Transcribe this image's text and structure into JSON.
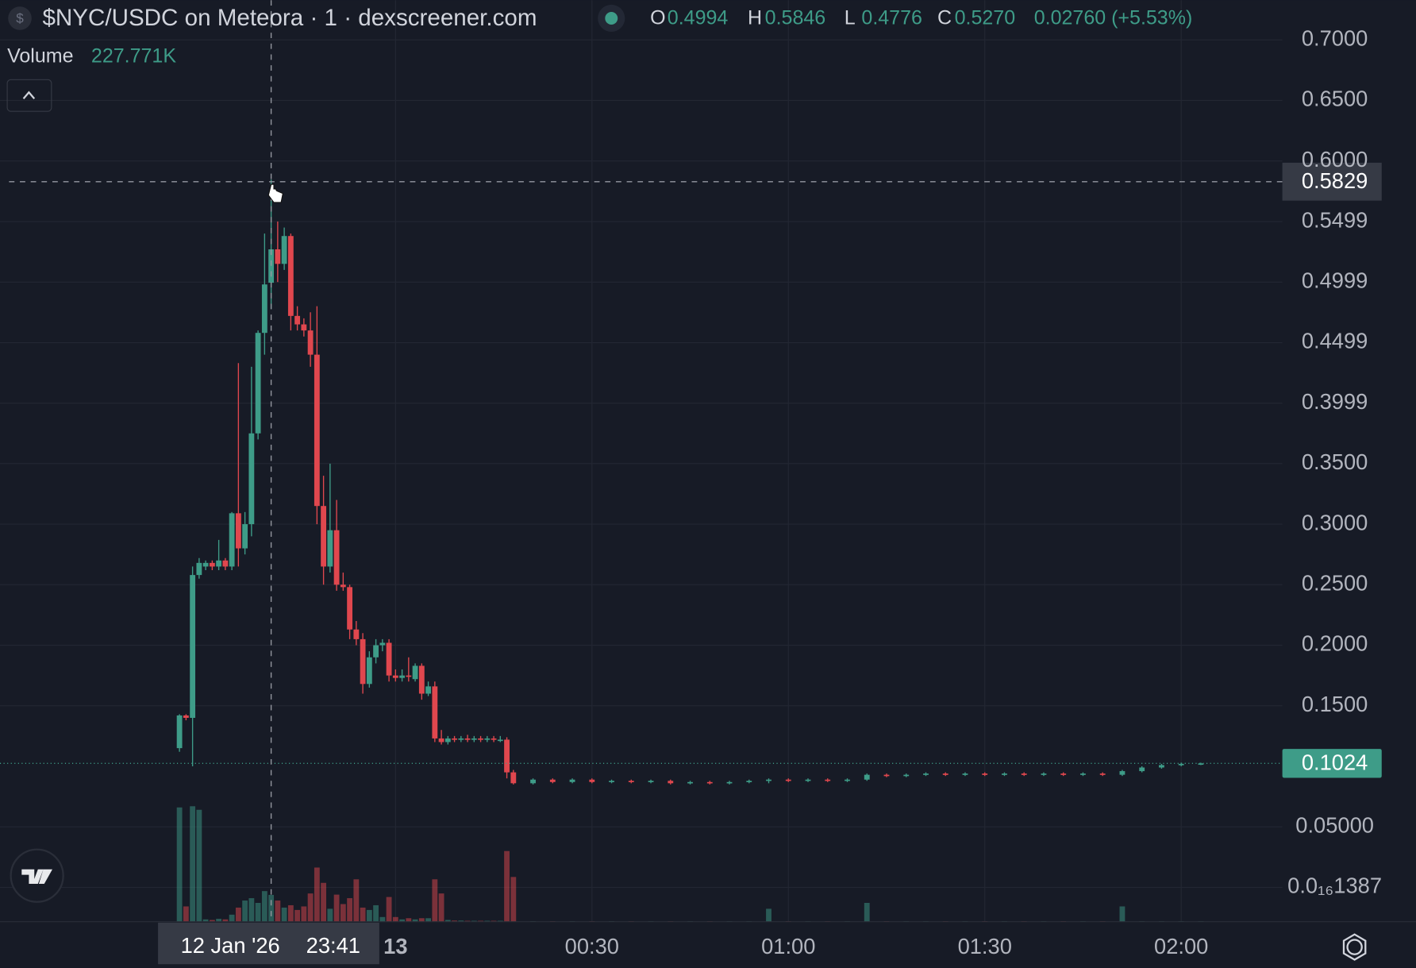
{
  "chart_data": {
    "type": "candlestick",
    "title": "$NYC/USDC on Meteora · 1 · dexscreener.com",
    "ohlc": [
      {
        "label": "O",
        "value": "0.4994"
      },
      {
        "label": "H",
        "value": "0.5846"
      },
      {
        "label": "L",
        "value": "0.4776"
      },
      {
        "label": "C",
        "value": "0.5270"
      }
    ],
    "change": "0.02760 (+5.53%)",
    "volume_title": "Volume",
    "volume_value": "227.771K",
    "crosshair_date": "12 Jan '26",
    "crosshair_index": 14,
    "crosshair_price": 0.5829,
    "last_price": 0.1024,
    "up_color": "#3e9c88",
    "down_color": "#e0474e",
    "grid": true,
    "ylim": [
      -0.0284,
      0.7328
    ],
    "yticks": [
      {
        "value": 0.7,
        "label": "0.7000"
      },
      {
        "value": 0.65,
        "label": "0.6500"
      },
      {
        "value": 0.6,
        "label": "0.6000"
      },
      0.5499,
      0.4999,
      0.4499,
      0.3999,
      {
        "value": 0.35,
        "label": "0.3500"
      },
      {
        "value": 0.3,
        "label": "0.3000"
      },
      {
        "value": 0.25,
        "label": "0.2500"
      },
      {
        "value": 0.2,
        "label": "0.2000"
      },
      {
        "value": 0.15,
        "label": "0.1500"
      },
      {
        "value": 0.05,
        "label": "0.05000"
      },
      {
        "value": 1.387e-17,
        "label": "0.0₁₆1387"
      }
    ],
    "xticks": [
      {
        "value": "00:00",
        "label": "13"
      },
      "00:30",
      "01:00",
      "01:30",
      "02:00"
    ],
    "vlim": [
      0,
      2300000
    ],
    "x": [
      "23:27",
      "23:28",
      "23:29",
      "23:30",
      "23:31",
      "23:32",
      "23:33",
      "23:34",
      "23:35",
      "23:36",
      "23:37",
      "23:38",
      "23:39",
      "23:40",
      "23:41",
      "23:42",
      "23:43",
      "23:44",
      "23:45",
      "23:46",
      "23:47",
      "23:48",
      "23:49",
      "23:50",
      "23:51",
      "23:52",
      "23:53",
      "23:54",
      "23:55",
      "23:56",
      "23:57",
      "23:58",
      "23:59",
      "00:00",
      "00:01",
      "00:02",
      "00:03",
      "00:04",
      "00:05",
      "00:06",
      "00:07",
      "00:08",
      "00:09",
      "00:10",
      "00:11",
      "00:12",
      "00:13",
      "00:14",
      "00:15",
      "00:16",
      "00:17",
      "00:18",
      "00:21",
      "00:24",
      "00:27",
      "00:30",
      "00:33",
      "00:36",
      "00:39",
      "00:42",
      "00:45",
      "00:48",
      "00:51",
      "00:54",
      "00:57",
      "01:00",
      "01:03",
      "01:06",
      "01:09",
      "01:12",
      "01:15",
      "01:18",
      "01:21",
      "01:24",
      "01:27",
      "01:30",
      "01:33",
      "01:36",
      "01:39",
      "01:42",
      "01:45",
      "01:48",
      "01:51",
      "01:54",
      "01:57",
      "02:00",
      "02:03"
    ],
    "open": [
      0.115,
      0.142,
      0.14,
      0.258,
      0.265,
      0.268,
      0.265,
      0.27,
      0.265,
      0.309,
      0.28,
      0.3,
      0.375,
      0.458,
      0.4994,
      0.527,
      0.515,
      0.538,
      0.472,
      0.465,
      0.46,
      0.44,
      0.315,
      0.265,
      0.295,
      0.25,
      0.248,
      0.213,
      0.205,
      0.168,
      0.19,
      0.2,
      0.202,
      0.175,
      0.173,
      0.175,
      0.172,
      0.183,
      0.16,
      0.166,
      0.123,
      0.12,
      0.123,
      0.122,
      0.123,
      0.122,
      0.123,
      0.122,
      0.123,
      0.122,
      0.122,
      0.095,
      0.086,
      0.089,
      0.087,
      0.089,
      0.087,
      0.088,
      0.087,
      0.088,
      0.086,
      0.087,
      0.086,
      0.087,
      0.088,
      0.089,
      0.088,
      0.089,
      0.088,
      0.089,
      0.093,
      0.092,
      0.093,
      0.094,
      0.093,
      0.094,
      0.093,
      0.094,
      0.093,
      0.094,
      0.093,
      0.094,
      0.093,
      0.096,
      0.099,
      0.101,
      0.102
    ],
    "high": [
      0.143,
      0.143,
      0.265,
      0.272,
      0.27,
      0.27,
      0.287,
      0.272,
      0.31,
      0.433,
      0.31,
      0.43,
      0.46,
      0.54,
      0.5846,
      0.55,
      0.545,
      0.54,
      0.48,
      0.47,
      0.475,
      0.48,
      0.34,
      0.35,
      0.32,
      0.26,
      0.25,
      0.22,
      0.21,
      0.195,
      0.205,
      0.205,
      0.205,
      0.18,
      0.18,
      0.19,
      0.185,
      0.185,
      0.17,
      0.17,
      0.13,
      0.125,
      0.125,
      0.125,
      0.126,
      0.125,
      0.125,
      0.125,
      0.125,
      0.125,
      0.124,
      0.097,
      0.09,
      0.09,
      0.09,
      0.09,
      0.089,
      0.089,
      0.089,
      0.089,
      0.088,
      0.088,
      0.088,
      0.089,
      0.09,
      0.09,
      0.09,
      0.09,
      0.09,
      0.094,
      0.094,
      0.094,
      0.095,
      0.095,
      0.095,
      0.095,
      0.095,
      0.095,
      0.095,
      0.095,
      0.095,
      0.095,
      0.097,
      0.1,
      0.102,
      0.103,
      0.103
    ],
    "low": [
      0.112,
      0.138,
      0.1,
      0.255,
      0.262,
      0.262,
      0.262,
      0.262,
      0.262,
      0.265,
      0.275,
      0.29,
      0.37,
      0.44,
      0.4776,
      0.5,
      0.51,
      0.46,
      0.46,
      0.455,
      0.43,
      0.3,
      0.25,
      0.26,
      0.245,
      0.245,
      0.205,
      0.2,
      0.16,
      0.165,
      0.185,
      0.195,
      0.17,
      0.17,
      0.17,
      0.17,
      0.17,
      0.155,
      0.158,
      0.12,
      0.118,
      0.118,
      0.12,
      0.12,
      0.12,
      0.12,
      0.12,
      0.12,
      0.12,
      0.12,
      0.09,
      0.085,
      0.085,
      0.086,
      0.086,
      0.086,
      0.086,
      0.086,
      0.086,
      0.085,
      0.085,
      0.085,
      0.085,
      0.086,
      0.086,
      0.087,
      0.087,
      0.087,
      0.087,
      0.088,
      0.091,
      0.091,
      0.092,
      0.092,
      0.092,
      0.092,
      0.092,
      0.092,
      0.092,
      0.092,
      0.092,
      0.092,
      0.092,
      0.095,
      0.098,
      0.1,
      0.101
    ],
    "close": [
      0.142,
      0.14,
      0.258,
      0.268,
      0.268,
      0.265,
      0.27,
      0.265,
      0.309,
      0.28,
      0.3,
      0.375,
      0.458,
      0.498,
      0.527,
      0.515,
      0.538,
      0.472,
      0.465,
      0.46,
      0.44,
      0.315,
      0.265,
      0.295,
      0.25,
      0.248,
      0.213,
      0.205,
      0.168,
      0.19,
      0.2,
      0.202,
      0.175,
      0.173,
      0.175,
      0.174,
      0.183,
      0.16,
      0.166,
      0.123,
      0.12,
      0.123,
      0.122,
      0.123,
      0.122,
      0.123,
      0.122,
      0.123,
      0.122,
      0.122,
      0.095,
      0.086,
      0.089,
      0.087,
      0.089,
      0.087,
      0.088,
      0.087,
      0.088,
      0.086,
      0.087,
      0.086,
      0.087,
      0.088,
      0.089,
      0.088,
      0.089,
      0.088,
      0.089,
      0.093,
      0.092,
      0.093,
      0.094,
      0.093,
      0.094,
      0.093,
      0.094,
      0.093,
      0.094,
      0.093,
      0.094,
      0.093,
      0.096,
      0.099,
      0.101,
      0.102,
      0.1024
    ],
    "volume": [
      970000,
      130000,
      980000,
      950000,
      20000,
      15000,
      25000,
      20000,
      60000,
      120000,
      180000,
      200000,
      160000,
      260000,
      227771,
      180000,
      120000,
      140000,
      100000,
      130000,
      240000,
      460000,
      330000,
      110000,
      230000,
      150000,
      200000,
      360000,
      120000,
      100000,
      140000,
      40000,
      210000,
      40000,
      20000,
      30000,
      20000,
      30000,
      30000,
      360000,
      240000,
      15000,
      10000,
      10000,
      8000,
      8000,
      8000,
      8000,
      8000,
      8000,
      600000,
      380000,
      5000,
      5000,
      5000,
      5000,
      5000,
      5000,
      5000,
      5000,
      5000,
      5000,
      5000,
      5000,
      110000,
      5000,
      5000,
      5000,
      5000,
      160000,
      5000,
      5000,
      5000,
      5000,
      5000,
      5000,
      5000,
      5000,
      5000,
      5000,
      5000,
      5000,
      130000,
      5000,
      5000,
      5000,
      5000
    ]
  }
}
